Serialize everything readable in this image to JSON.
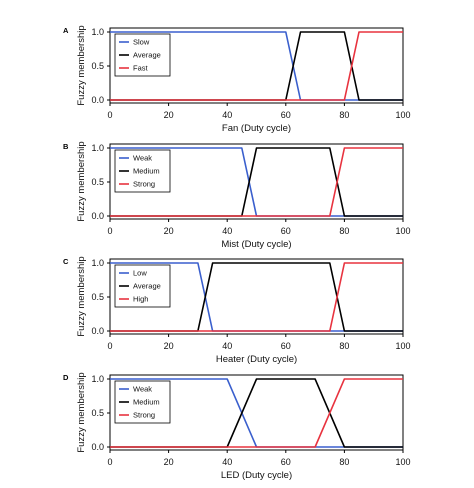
{
  "chart_data": [
    {
      "type": "line",
      "panel_label": "A",
      "xlabel": "Fan (Duty cycle)",
      "ylabel": "Fuzzy membership",
      "xlim": [
        0,
        100
      ],
      "ylim": [
        0,
        1
      ],
      "x_ticks": [
        "0",
        "20",
        "40",
        "60",
        "80",
        "100"
      ],
      "y_ticks": [
        "0.0",
        "0.5",
        "1.0"
      ],
      "grid": false,
      "legend_position": "top-left",
      "series": [
        {
          "name": "Slow",
          "color": "#3a5fcd",
          "x": [
            0,
            60,
            65,
            100
          ],
          "y": [
            1,
            1,
            0,
            0
          ]
        },
        {
          "name": "Average",
          "color": "#000000",
          "x": [
            0,
            60,
            65,
            80,
            85,
            100
          ],
          "y": [
            0,
            0,
            1,
            1,
            0,
            0
          ]
        },
        {
          "name": "Fast",
          "color": "#e8333f",
          "x": [
            0,
            80,
            85,
            100
          ],
          "y": [
            0,
            0,
            1,
            1
          ]
        }
      ]
    },
    {
      "type": "line",
      "panel_label": "B",
      "xlabel": "Mist (Duty cycle)",
      "ylabel": "Fuzzy membership",
      "xlim": [
        0,
        100
      ],
      "ylim": [
        0,
        1
      ],
      "x_ticks": [
        "0",
        "20",
        "40",
        "60",
        "80",
        "100"
      ],
      "y_ticks": [
        "0.0",
        "0.5",
        "1.0"
      ],
      "grid": false,
      "legend_position": "top-left",
      "series": [
        {
          "name": "Weak",
          "color": "#3a5fcd",
          "x": [
            0,
            45,
            50,
            100
          ],
          "y": [
            1,
            1,
            0,
            0
          ]
        },
        {
          "name": "Medium",
          "color": "#000000",
          "x": [
            0,
            45,
            50,
            75,
            80,
            100
          ],
          "y": [
            0,
            0,
            1,
            1,
            0,
            0
          ]
        },
        {
          "name": "Strong",
          "color": "#e8333f",
          "x": [
            0,
            75,
            80,
            100
          ],
          "y": [
            0,
            0,
            1,
            1
          ]
        }
      ]
    },
    {
      "type": "line",
      "panel_label": "C",
      "xlabel": "Heater (Duty cycle)",
      "ylabel": "Fuzzy membership",
      "xlim": [
        0,
        100
      ],
      "ylim": [
        0,
        1
      ],
      "x_ticks": [
        "0",
        "20",
        "40",
        "60",
        "80",
        "100"
      ],
      "y_ticks": [
        "0.0",
        "0.5",
        "1.0"
      ],
      "grid": false,
      "legend_position": "top-left",
      "series": [
        {
          "name": "Low",
          "color": "#3a5fcd",
          "x": [
            0,
            30,
            35,
            100
          ],
          "y": [
            1,
            1,
            0,
            0
          ]
        },
        {
          "name": "Average",
          "color": "#000000",
          "x": [
            0,
            30,
            35,
            75,
            80,
            100
          ],
          "y": [
            0,
            0,
            1,
            1,
            0,
            0
          ]
        },
        {
          "name": "High",
          "color": "#e8333f",
          "x": [
            0,
            75,
            80,
            100
          ],
          "y": [
            0,
            0,
            1,
            1
          ]
        }
      ]
    },
    {
      "type": "line",
      "panel_label": "D",
      "xlabel": "LED (Duty cycle)",
      "ylabel": "Fuzzy membership",
      "xlim": [
        0,
        100
      ],
      "ylim": [
        0,
        1
      ],
      "x_ticks": [
        "0",
        "20",
        "40",
        "60",
        "80",
        "100"
      ],
      "y_ticks": [
        "0.0",
        "0.5",
        "1.0"
      ],
      "grid": false,
      "legend_position": "top-left",
      "series": [
        {
          "name": "Weak",
          "color": "#3a5fcd",
          "x": [
            0,
            40,
            50,
            100
          ],
          "y": [
            1,
            1,
            0,
            0
          ]
        },
        {
          "name": "Medium",
          "color": "#000000",
          "x": [
            0,
            40,
            50,
            70,
            80,
            100
          ],
          "y": [
            0,
            0,
            1,
            1,
            0,
            0
          ]
        },
        {
          "name": "Strong",
          "color": "#e8333f",
          "x": [
            0,
            70,
            80,
            100
          ],
          "y": [
            0,
            0,
            1,
            1
          ]
        }
      ]
    }
  ]
}
